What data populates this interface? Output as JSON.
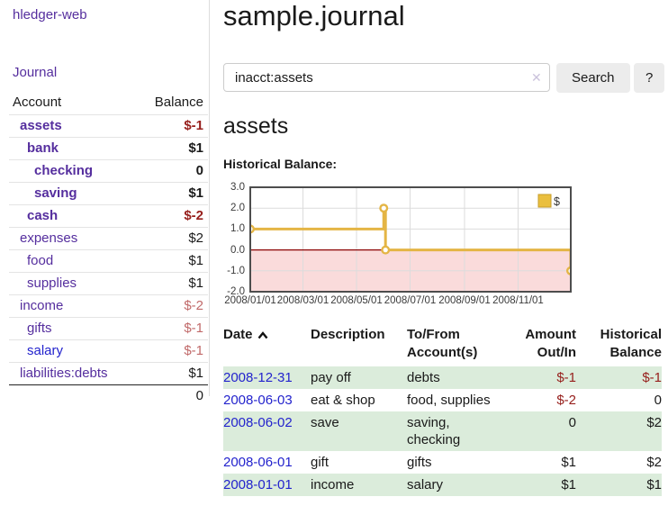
{
  "brand": "hledger-web",
  "sidebar": {
    "journal_link": "Journal",
    "accounts_header": {
      "account": "Account",
      "balance": "Balance"
    },
    "accounts": [
      {
        "name": "assets",
        "level": 1,
        "bold": true,
        "balance": "$-1",
        "balance_style": "neg-strong"
      },
      {
        "name": "bank",
        "level": 2,
        "bold": true,
        "balance": "$1",
        "balance_style": ""
      },
      {
        "name": "checking",
        "level": 3,
        "bold": true,
        "balance": "0",
        "balance_style": ""
      },
      {
        "name": "saving",
        "level": 3,
        "bold": true,
        "balance": "$1",
        "balance_style": ""
      },
      {
        "name": "cash",
        "level": 2,
        "bold": true,
        "balance": "$-2",
        "balance_style": "neg-strong"
      },
      {
        "name": "expenses",
        "level": 1,
        "bold": false,
        "balance": "$2",
        "balance_style": ""
      },
      {
        "name": "food",
        "level": 2,
        "bold": false,
        "balance": "$1",
        "balance_style": ""
      },
      {
        "name": "supplies",
        "level": 2,
        "bold": false,
        "balance": "$1",
        "balance_style": ""
      },
      {
        "name": "income",
        "level": 1,
        "bold": false,
        "balance": "$-2",
        "balance_style": "neg-soft"
      },
      {
        "name": "gifts",
        "level": 2,
        "bold": false,
        "balance": "$-1",
        "balance_style": "neg-soft"
      },
      {
        "name": "salary",
        "level": 2,
        "bold": false,
        "link_color": "blue",
        "balance": "$-1",
        "balance_style": "neg-soft"
      },
      {
        "name": "liabilities:debts",
        "level": 1,
        "bold": false,
        "balance": "$1",
        "balance_style": ""
      }
    ],
    "total": "0"
  },
  "header": {
    "title": "sample.journal"
  },
  "search": {
    "value": "inacct:assets",
    "clear_icon": "✕",
    "button_label": "Search",
    "help_label": "?"
  },
  "account_page": {
    "title": "assets",
    "chart_label": "Historical Balance:"
  },
  "chart_data": {
    "type": "line",
    "title": "Historical Balance",
    "step": true,
    "series": [
      {
        "name": "$",
        "points": [
          {
            "x": "2008-01-01",
            "y": 1
          },
          {
            "x": "2008-06-01",
            "y": 2
          },
          {
            "x": "2008-06-03",
            "y": 0
          },
          {
            "x": "2008-12-31",
            "y": -1
          }
        ]
      }
    ],
    "x_range": [
      "2008-01-01",
      "2008-12-31"
    ],
    "ylim": [
      -2,
      3
    ],
    "yticks": [
      "3.0",
      "2.0",
      "1.0",
      "0.0",
      "-1.0",
      "-2.0"
    ],
    "ytick_values": [
      3,
      2,
      1,
      0,
      -1,
      -2
    ],
    "xticks": [
      "2008/01/01",
      "2008/03/01",
      "2008/05/01",
      "2008/07/01",
      "2008/09/01",
      "2008/11/01"
    ],
    "legend": "$",
    "legend_position": "top-right",
    "grid": true,
    "colors": {
      "line": "#e4b545",
      "marker_fill": "#ffffff",
      "legend_fill": "#eabf3f",
      "legend_border": "#c79c28",
      "zero_line": "#8b0000",
      "negative_region": "#fadbdb",
      "grid_line": "#dcdcdc",
      "border": "#4d4d4d"
    }
  },
  "register": {
    "columns": [
      {
        "label": "Date",
        "sorted_asc": true
      },
      {
        "label": "Description"
      },
      {
        "label": "To/From Account(s)"
      },
      {
        "label": "Amount Out/In"
      },
      {
        "label": "Historical Balance"
      }
    ],
    "rows": [
      {
        "date": "2008-12-31",
        "description": "pay off",
        "accounts": "debts",
        "amount": "$-1",
        "amount_neg": true,
        "balance": "$-1",
        "balance_neg": true,
        "shaded": true
      },
      {
        "date": "2008-06-03",
        "description": "eat & shop",
        "accounts": "food, supplies",
        "amount": "$-2",
        "amount_neg": true,
        "balance": "0",
        "balance_neg": false,
        "shaded": false
      },
      {
        "date": "2008-06-02",
        "description": "save",
        "accounts": "saving, checking",
        "amount": "0",
        "amount_neg": false,
        "balance": "$2",
        "balance_neg": false,
        "shaded": true
      },
      {
        "date": "2008-06-01",
        "description": "gift",
        "accounts": "gifts",
        "amount": "$1",
        "amount_neg": false,
        "balance": "$2",
        "balance_neg": false,
        "shaded": false
      },
      {
        "date": "2008-01-01",
        "description": "income",
        "accounts": "salary",
        "amount": "$1",
        "amount_neg": false,
        "balance": "$1",
        "balance_neg": false,
        "shaded": true
      }
    ]
  }
}
